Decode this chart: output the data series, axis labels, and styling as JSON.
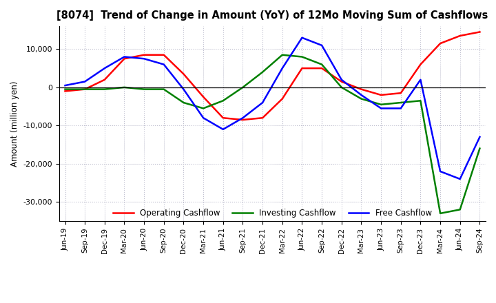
{
  "title": "[8074]  Trend of Change in Amount (YoY) of 12Mo Moving Sum of Cashflows",
  "ylabel": "Amount (million yen)",
  "x_labels": [
    "Jun-19",
    "Sep-19",
    "Dec-19",
    "Mar-20",
    "Jun-20",
    "Sep-20",
    "Dec-20",
    "Mar-21",
    "Jun-21",
    "Sep-21",
    "Dec-21",
    "Mar-22",
    "Jun-22",
    "Sep-22",
    "Dec-22",
    "Mar-23",
    "Jun-23",
    "Sep-23",
    "Dec-23",
    "Mar-24",
    "Jun-24",
    "Sep-24"
  ],
  "operating": [
    -1000,
    -500,
    2000,
    7500,
    8500,
    8500,
    3500,
    -2500,
    -8000,
    -8500,
    -8000,
    -3000,
    5000,
    5000,
    1500,
    -500,
    -2000,
    -1500,
    6000,
    11500,
    13500,
    14500
  ],
  "investing": [
    -500,
    -500,
    -500,
    0,
    -500,
    -500,
    -4000,
    -5500,
    -3500,
    0,
    4000,
    8500,
    8000,
    6000,
    0,
    -3000,
    -4500,
    -4000,
    -3500,
    -33000,
    -32000,
    -16000
  ],
  "free": [
    500,
    1500,
    5000,
    8000,
    7500,
    6000,
    -500,
    -8000,
    -11000,
    -8000,
    -4000,
    5000,
    13000,
    11000,
    2000,
    -2000,
    -5500,
    -5500,
    2000,
    -22000,
    -24000,
    -13000
  ],
  "operating_color": "#FF0000",
  "investing_color": "#008000",
  "free_color": "#0000FF",
  "ylim": [
    -35000,
    16000
  ],
  "yticks": [
    -30000,
    -20000,
    -10000,
    0,
    10000
  ],
  "grid_color": "#BBBBCC",
  "background_color": "#FFFFFF",
  "legend_labels": [
    "Operating Cashflow",
    "Investing Cashflow",
    "Free Cashflow"
  ]
}
